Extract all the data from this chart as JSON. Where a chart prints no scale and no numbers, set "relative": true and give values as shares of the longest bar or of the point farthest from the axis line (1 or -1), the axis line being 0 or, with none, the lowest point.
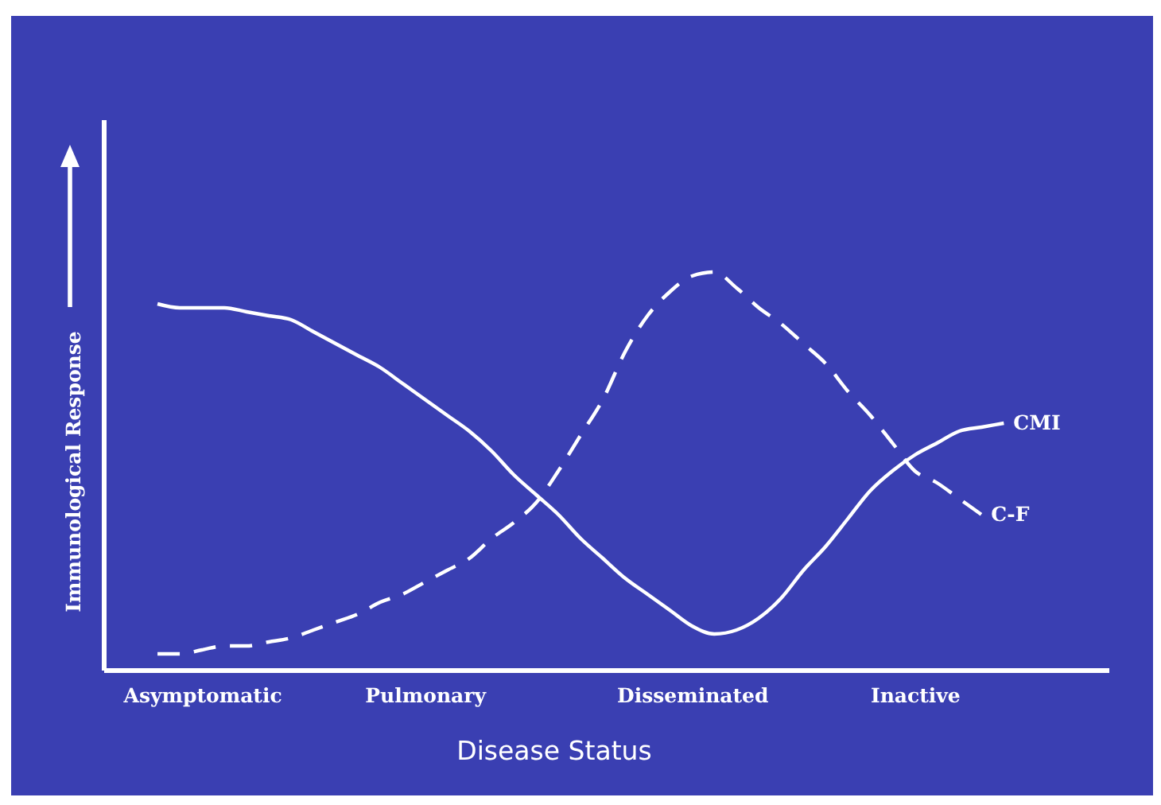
{
  "chart_data": {
    "type": "line",
    "relative": true,
    "xlabel": "Disease Status",
    "ylabel": "Immunological Response",
    "categories": [
      null,
      null,
      "Asymptomatic",
      null,
      null,
      null,
      null,
      null,
      null,
      null,
      null,
      null,
      "Pulmonary",
      null,
      null,
      null,
      null,
      null,
      null,
      null,
      null,
      null,
      null,
      null,
      "Disseminated",
      null,
      null,
      null,
      null,
      null,
      null,
      null,
      null,
      null,
      "Inactive",
      null,
      null,
      null,
      null,
      null,
      null,
      null,
      null
    ],
    "series": [
      {
        "name": "CMI",
        "color": "#ffffff",
        "line_style": "solid",
        "values": [
          0.92,
          0.91,
          0.91,
          0.91,
          0.9,
          0.89,
          0.88,
          0.85,
          0.82,
          0.79,
          0.76,
          0.72,
          0.68,
          0.64,
          0.6,
          0.55,
          0.49,
          0.44,
          0.39,
          0.33,
          0.28,
          0.23,
          0.19,
          0.15,
          0.11,
          0.09,
          0.1,
          0.13,
          0.18,
          0.25,
          0.31,
          0.38,
          0.45,
          0.5,
          0.54,
          0.57,
          0.6,
          0.61,
          0.62,
          null,
          null,
          null,
          null
        ]
      },
      {
        "name": "C-F",
        "color": "#ffffff",
        "line_style": "dashed",
        "values": [
          0.04,
          0.04,
          0.05,
          0.06,
          0.06,
          0.07,
          0.08,
          0.1,
          0.12,
          0.14,
          0.17,
          0.19,
          0.22,
          0.25,
          0.28,
          0.33,
          0.37,
          0.42,
          0.5,
          0.59,
          0.68,
          0.8,
          0.89,
          0.95,
          0.99,
          1.0,
          0.96,
          0.91,
          0.87,
          0.82,
          0.77,
          0.7,
          0.64,
          0.57,
          0.5,
          0.47,
          0.43,
          0.39,
          null,
          null,
          null,
          null,
          null
        ]
      }
    ]
  }
}
